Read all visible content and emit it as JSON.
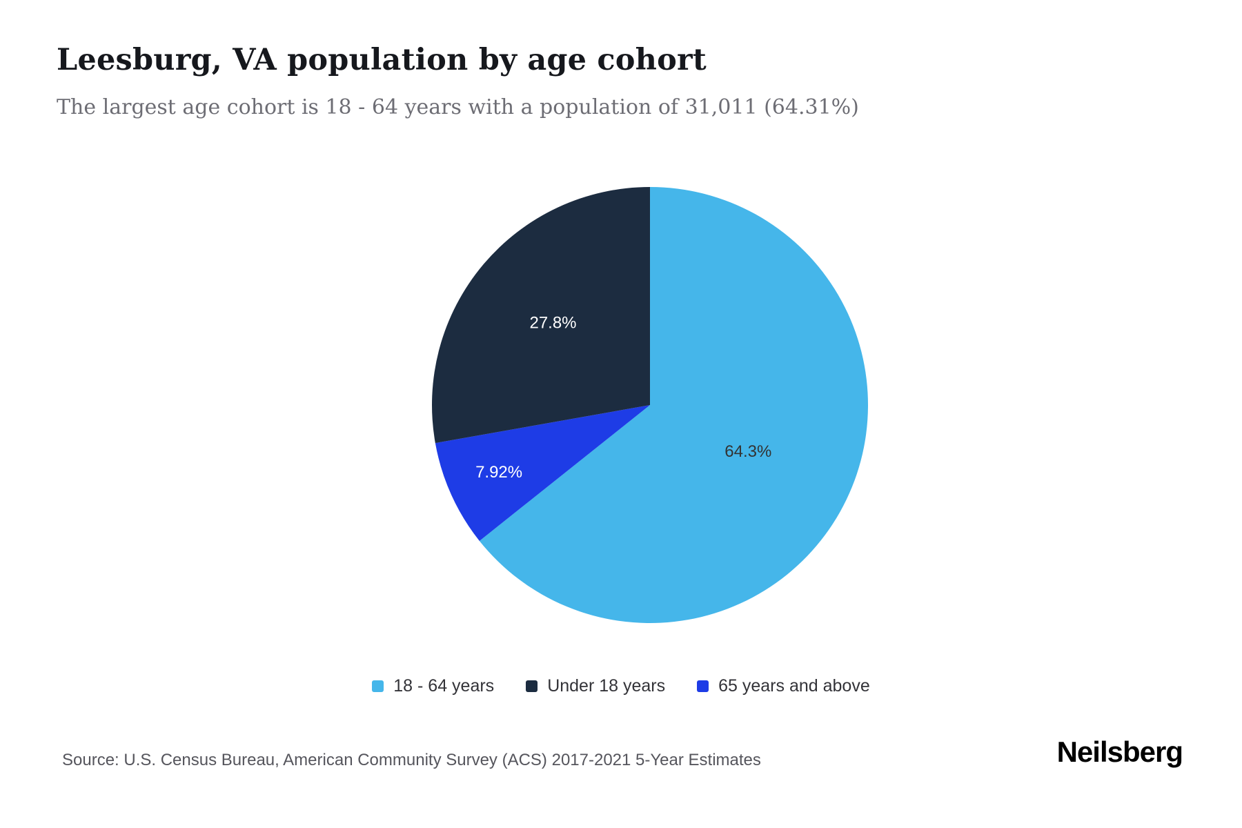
{
  "header": {
    "title": "Leesburg, VA population by age cohort",
    "subtitle": "The largest age cohort is 18 - 64 years with a population of 31,011 (64.31%)"
  },
  "chart_data": {
    "type": "pie",
    "title": "Leesburg, VA population by age cohort",
    "slices": [
      {
        "label": "18 - 64 years",
        "value": 64.31,
        "display": "64.3%",
        "color": "#45b6ea",
        "label_color": "#333333",
        "label_radius": 0.5
      },
      {
        "label": "Under 18 years",
        "value": 27.8,
        "display": "27.8%",
        "color": "#1c2c40",
        "label_color": "#ffffff",
        "label_radius": 0.58
      },
      {
        "label": "65 years and above",
        "value": 7.92,
        "display": "7.92%",
        "color": "#1e3ce6",
        "label_color": "#ffffff",
        "label_radius": 0.76
      }
    ],
    "render_order": [
      0,
      2,
      1
    ],
    "start_angle_deg": 0,
    "direction": "clockwise",
    "legend_position": "bottom",
    "grid": false
  },
  "footer": {
    "source": "Source: U.S. Census Bureau, American Community Survey (ACS) 2017-2021 5-Year Estimates",
    "brand": "Neilsberg"
  }
}
